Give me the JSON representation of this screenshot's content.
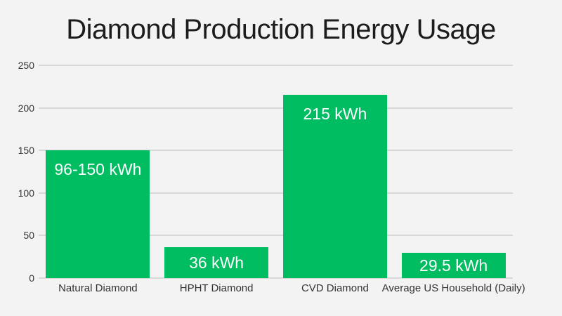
{
  "title": "Diamond Production Energy Usage",
  "colors": {
    "background": "#f3f3f3",
    "bar": "#00bd62",
    "grid": "#d8d8d8",
    "tick_text": "#333333",
    "title_text": "#1c1c1c",
    "bar_label_text": "#ffffff"
  },
  "chart_data": {
    "type": "bar",
    "title": "Diamond Production Energy Usage",
    "categories": [
      "Natural Diamond",
      "HPHT Diamond",
      "CVD Diamond",
      "Average US Household (Daily)"
    ],
    "values": [
      150,
      36,
      215,
      29.5
    ],
    "value_labels": [
      "96-150 kWh",
      "36 kWh",
      "215 kWh",
      "29.5 kWh"
    ],
    "xlabel": "",
    "ylabel": "",
    "ylim": [
      0,
      250
    ],
    "yticks": [
      0,
      50,
      100,
      150,
      200,
      250
    ],
    "grid": true,
    "legend_position": "none",
    "bar_color": "#00bd62"
  }
}
